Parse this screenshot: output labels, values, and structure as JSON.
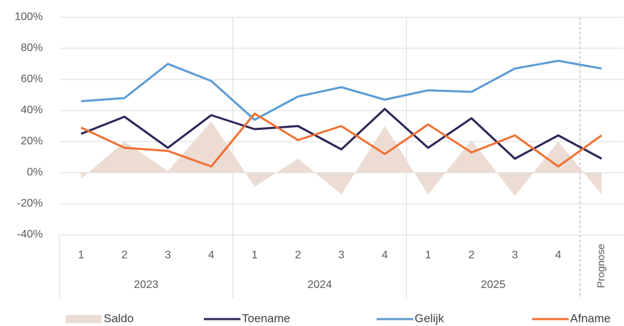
{
  "chart_data": {
    "type": "line",
    "groups": [
      {
        "name": "2023",
        "categories": [
          "1",
          "2",
          "3",
          "4"
        ]
      },
      {
        "name": "2024",
        "categories": [
          "1",
          "2",
          "3",
          "4"
        ]
      },
      {
        "name": "2025",
        "categories": [
          "1",
          "2",
          "3",
          "4"
        ]
      }
    ],
    "forecast_label": "Prognose",
    "series": [
      {
        "name": "Saldo",
        "kind": "area",
        "color": "#ecdcd3",
        "values": [
          -4,
          20,
          1,
          33,
          -9,
          9,
          -14,
          30,
          -14,
          21,
          -15,
          20,
          -14
        ]
      },
      {
        "name": "Toename",
        "color": "#2e2357",
        "values": [
          25,
          36,
          16,
          37,
          28,
          30,
          15,
          41,
          16,
          35,
          9,
          24,
          9
        ]
      },
      {
        "name": "Gelijk",
        "color": "#5b9bd5",
        "values": [
          46,
          48,
          70,
          59,
          34,
          49,
          55,
          47,
          53,
          52,
          67,
          72,
          67
        ]
      },
      {
        "name": "Afname",
        "color": "#f07033",
        "values": [
          29,
          16,
          14,
          4,
          38,
          21,
          30,
          12,
          31,
          13,
          24,
          4,
          24
        ]
      }
    ],
    "ylim": [
      -40,
      100
    ],
    "yticks": [
      {
        "value": -40,
        "label": "-40%"
      },
      {
        "value": -20,
        "label": "-20%"
      },
      {
        "value": 0,
        "label": "0%"
      },
      {
        "value": 20,
        "label": "20%"
      },
      {
        "value": 40,
        "label": "40%"
      },
      {
        "value": 60,
        "label": "60%"
      },
      {
        "value": 80,
        "label": "80%"
      },
      {
        "value": 100,
        "label": "100%"
      }
    ],
    "grid": true
  }
}
